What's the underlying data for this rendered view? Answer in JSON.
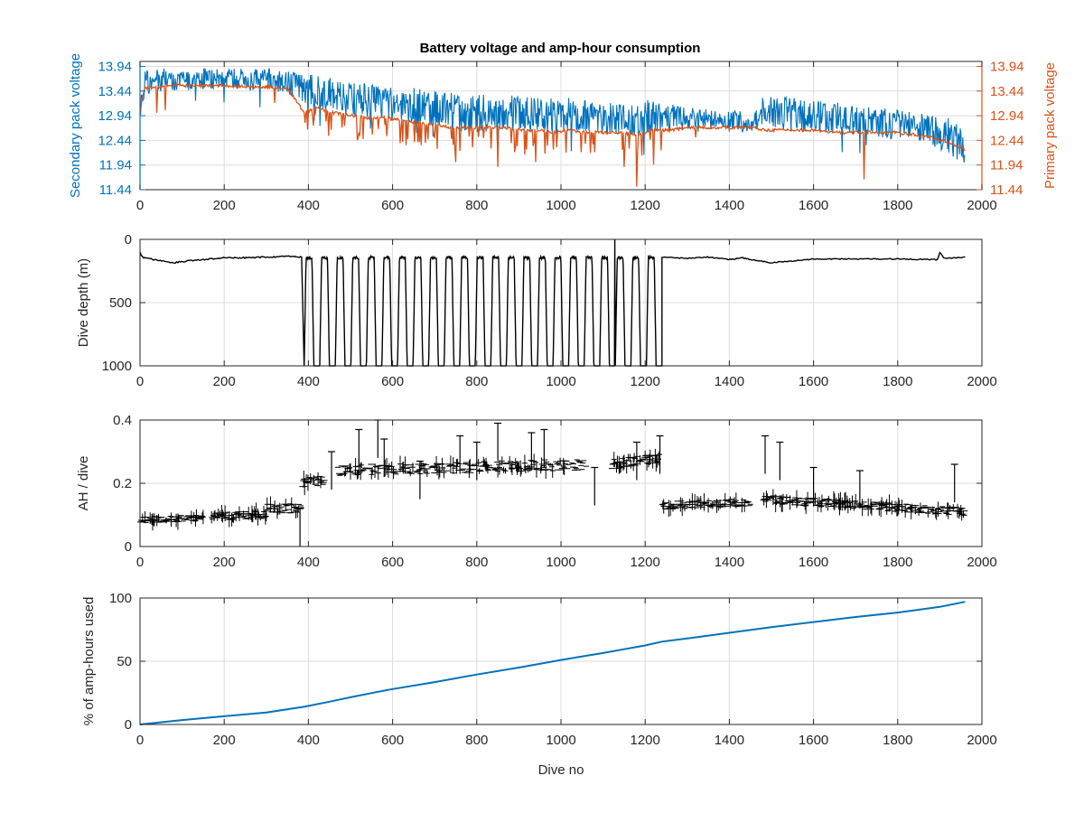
{
  "figure_title": "Battery voltage and amp-hour consumption",
  "colors": {
    "blue": "#0072BD",
    "orange": "#D95319",
    "black": "#000000",
    "grid": "#dcdcdc",
    "axis": "#262626"
  },
  "chart_data": [
    {
      "id": "voltage",
      "type": "line",
      "title": "Battery voltage and amp-hour consumption",
      "xlabel": "",
      "ylabel": "Secondary pack voltage",
      "ylabel_right": "Primary pack voltage",
      "xlim": [
        0,
        2000
      ],
      "ylim": [
        11.44,
        14.04
      ],
      "ylim_right": [
        11.44,
        14.04
      ],
      "xticks": [
        0,
        200,
        400,
        600,
        800,
        1000,
        1200,
        1400,
        1600,
        1800,
        2000
      ],
      "yticks": [
        11.44,
        11.94,
        12.44,
        12.94,
        13.44,
        13.94
      ],
      "ytick_labels": [
        "11.44",
        "11.94",
        "12.44",
        "12.94",
        "13.44",
        "13.94"
      ],
      "yticks_right": [
        11.44,
        11.94,
        12.44,
        12.94,
        13.44,
        13.94
      ],
      "ytick_labels_right": [
        "11.44",
        "11.94",
        "12.44",
        "12.94",
        "13.44",
        "13.94"
      ],
      "grid": true,
      "series": [
        {
          "name": "Secondary pack voltage",
          "axis": "left",
          "color": "#0072BD",
          "x": [
            0,
            10,
            30,
            60,
            100,
            150,
            200,
            250,
            300,
            350,
            390,
            420,
            460,
            500,
            540,
            580,
            620,
            660,
            700,
            740,
            780,
            820,
            860,
            900,
            940,
            980,
            1020,
            1060,
            1100,
            1140,
            1180,
            1220,
            1260,
            1300,
            1340,
            1380,
            1420,
            1460,
            1480,
            1520,
            1560,
            1600,
            1640,
            1680,
            1720,
            1760,
            1800,
            1840,
            1880,
            1920,
            1950,
            1960
          ],
          "low": [
            12.9,
            13.3,
            13.4,
            13.45,
            13.45,
            13.45,
            13.5,
            13.45,
            13.45,
            13.4,
            13.15,
            13.1,
            13.0,
            12.9,
            12.9,
            12.85,
            12.8,
            12.75,
            12.7,
            12.65,
            12.6,
            12.6,
            12.65,
            12.6,
            12.6,
            12.55,
            12.6,
            12.6,
            12.55,
            12.55,
            12.5,
            12.6,
            12.6,
            12.65,
            12.6,
            12.6,
            12.6,
            12.65,
            12.7,
            12.65,
            12.6,
            12.6,
            12.6,
            12.55,
            12.55,
            12.5,
            12.45,
            12.4,
            12.3,
            12.2,
            11.95,
            12.0
          ],
          "high": [
            13.3,
            13.85,
            13.9,
            13.9,
            13.85,
            13.9,
            13.9,
            13.9,
            13.9,
            13.9,
            13.8,
            13.75,
            13.7,
            13.6,
            13.6,
            13.55,
            13.5,
            13.5,
            13.45,
            13.4,
            13.35,
            13.4,
            13.35,
            13.4,
            13.3,
            13.3,
            13.3,
            13.25,
            13.2,
            13.2,
            13.2,
            13.3,
            13.2,
            13.1,
            13.1,
            13.0,
            13.05,
            13.0,
            13.4,
            13.35,
            13.3,
            13.25,
            13.2,
            13.2,
            13.15,
            13.1,
            13.05,
            13.0,
            12.95,
            12.9,
            12.75,
            12.5
          ]
        },
        {
          "name": "Primary pack voltage",
          "axis": "right",
          "color": "#D95319",
          "x": [
            0,
            10,
            30,
            60,
            100,
            150,
            200,
            250,
            300,
            350,
            390,
            420,
            460,
            500,
            540,
            580,
            620,
            660,
            700,
            740,
            780,
            820,
            860,
            900,
            940,
            980,
            1020,
            1060,
            1100,
            1140,
            1180,
            1220,
            1260,
            1300,
            1340,
            1380,
            1420,
            1460,
            1480,
            1520,
            1560,
            1600,
            1640,
            1680,
            1720,
            1760,
            1800,
            1840,
            1880,
            1920,
            1950,
            1960
          ],
          "y": [
            13.0,
            13.5,
            13.52,
            13.55,
            13.55,
            13.55,
            13.55,
            13.53,
            13.52,
            13.5,
            13.0,
            13.1,
            13.0,
            12.95,
            12.9,
            12.9,
            12.85,
            12.8,
            12.75,
            12.7,
            12.7,
            12.7,
            12.7,
            12.65,
            12.65,
            12.6,
            12.65,
            12.6,
            12.6,
            12.6,
            12.55,
            12.65,
            12.65,
            12.7,
            12.7,
            12.7,
            12.7,
            12.7,
            12.65,
            12.65,
            12.65,
            12.65,
            12.6,
            12.6,
            12.6,
            12.6,
            12.6,
            12.55,
            12.5,
            12.4,
            12.3,
            12.25
          ],
          "dips": [
            [
              40,
              13.0
            ],
            [
              60,
              13.05
            ],
            [
              320,
              13.2
            ],
            [
              410,
              12.9
            ],
            [
              480,
              12.7
            ],
            [
              520,
              12.6
            ],
            [
              620,
              12.7
            ],
            [
              660,
              12.4
            ],
            [
              700,
              12.5
            ],
            [
              750,
              12.0
            ],
            [
              790,
              12.3
            ],
            [
              850,
              11.9
            ],
            [
              890,
              12.2
            ],
            [
              940,
              12.0
            ],
            [
              990,
              12.3
            ],
            [
              1080,
              12.2
            ],
            [
              1150,
              11.9
            ],
            [
              1180,
              11.5
            ],
            [
              1220,
              11.95
            ],
            [
              1320,
              12.5
            ],
            [
              1720,
              11.65
            ]
          ]
        }
      ]
    },
    {
      "id": "depth",
      "type": "line",
      "title": "",
      "xlabel": "",
      "ylabel": "Dive depth (m)",
      "xlim": [
        0,
        2000
      ],
      "ylim": [
        0,
        1000
      ],
      "y_reversed": true,
      "xticks": [
        0,
        200,
        400,
        600,
        800,
        1000,
        1200,
        1400,
        1600,
        1800,
        2000
      ],
      "yticks": [
        0,
        500,
        1000
      ],
      "ytick_labels": [
        "0",
        "500",
        "1000"
      ],
      "grid": true,
      "series": [
        {
          "name": "Dive depth",
          "color": "#000000",
          "shallow_x": [
            0,
            5,
            20,
            50,
            80,
            100,
            150,
            200,
            250,
            300,
            350,
            385
          ],
          "shallow_y": [
            100,
            140,
            150,
            170,
            185,
            175,
            160,
            145,
            145,
            140,
            135,
            140
          ],
          "deep_phase": {
            "start": 390,
            "end": 1240,
            "min_depth": 145,
            "max_depth": 1000,
            "cycles": 23,
            "spike_x": 1128,
            "spike_depth": 0
          },
          "late_x": [
            1240,
            1300,
            1350,
            1400,
            1430,
            1460,
            1500,
            1550,
            1600,
            1700,
            1800,
            1880,
            1895,
            1900,
            1910,
            1950,
            1960
          ],
          "late_y": [
            140,
            150,
            140,
            160,
            145,
            165,
            185,
            170,
            155,
            155,
            155,
            160,
            160,
            100,
            150,
            145,
            140
          ]
        }
      ]
    },
    {
      "id": "ah_per_dive",
      "type": "scatter",
      "title": "",
      "xlabel": "",
      "ylabel": "AH / dive",
      "xlim": [
        0,
        2000
      ],
      "ylim": [
        0,
        0.4
      ],
      "xticks": [
        0,
        200,
        400,
        600,
        800,
        1000,
        1200,
        1400,
        1600,
        1800,
        2000
      ],
      "yticks": [
        0,
        0.2,
        0.4
      ],
      "ytick_labels": [
        "0",
        "0.2",
        "0.4"
      ],
      "grid": true,
      "series": [
        {
          "name": "AH per dive",
          "color": "#000000",
          "segments": [
            {
              "x0": 0,
              "x1": 150,
              "y0": 0.085,
              "y1": 0.09,
              "spread": 0.02
            },
            {
              "x0": 170,
              "x1": 300,
              "y0": 0.095,
              "y1": 0.1,
              "spread": 0.025
            },
            {
              "x0": 300,
              "x1": 385,
              "y0": 0.12,
              "y1": 0.12,
              "spread": 0.03
            },
            {
              "x0": 385,
              "x1": 440,
              "y0": 0.2,
              "y1": 0.21,
              "spread": 0.03
            },
            {
              "x0": 470,
              "x1": 1060,
              "y0": 0.24,
              "y1": 0.26,
              "spread": 0.035,
              "gap": [
                1060,
                1120
              ]
            },
            {
              "x0": 1120,
              "x1": 1235,
              "y0": 0.26,
              "y1": 0.28,
              "spread": 0.03
            },
            {
              "x0": 1240,
              "x1": 1450,
              "y0": 0.13,
              "y1": 0.14,
              "spread": 0.025
            },
            {
              "x0": 1480,
              "x1": 1960,
              "y0": 0.15,
              "y1": 0.11,
              "spread": 0.025
            }
          ],
          "spikes": [
            [
              380,
              0.12
            ],
            [
              455,
              0.3
            ],
            [
              520,
              0.37
            ],
            [
              565,
              0.4
            ],
            [
              580,
              0.34
            ],
            [
              665,
              0.27
            ],
            [
              760,
              0.35
            ],
            [
              800,
              0.33
            ],
            [
              850,
              0.39
            ],
            [
              930,
              0.36
            ],
            [
              960,
              0.37
            ],
            [
              1080,
              0.25
            ],
            [
              1180,
              0.33
            ],
            [
              1235,
              0.35
            ],
            [
              1485,
              0.35
            ],
            [
              1520,
              0.33
            ],
            [
              1600,
              0.25
            ],
            [
              1710,
              0.24
            ],
            [
              1935,
              0.26
            ]
          ]
        }
      ]
    },
    {
      "id": "ah_used",
      "type": "line",
      "title": "",
      "xlabel": "Dive no",
      "ylabel": "% of amp-hours used",
      "xlim": [
        0,
        2000
      ],
      "ylim": [
        0,
        100
      ],
      "xticks": [
        0,
        200,
        400,
        600,
        800,
        1000,
        1200,
        1400,
        1600,
        1800,
        2000
      ],
      "yticks": [
        0,
        50,
        100
      ],
      "ytick_labels": [
        "0",
        "50",
        "100"
      ],
      "grid": true,
      "series": [
        {
          "name": "% of amp-hours used",
          "color": "#0072BD",
          "x": [
            0,
            100,
            200,
            300,
            390,
            450,
            500,
            560,
            600,
            700,
            800,
            900,
            1000,
            1100,
            1150,
            1200,
            1240,
            1300,
            1400,
            1500,
            1600,
            1700,
            1800,
            1900,
            1960
          ],
          "y": [
            0,
            3.5,
            6.5,
            9.5,
            14,
            18,
            21.5,
            25.5,
            28,
            33.5,
            39.5,
            45,
            51,
            56.5,
            59.5,
            62.5,
            65.5,
            68,
            72.5,
            77,
            81,
            85,
            88.5,
            93,
            97
          ]
        }
      ]
    }
  ]
}
